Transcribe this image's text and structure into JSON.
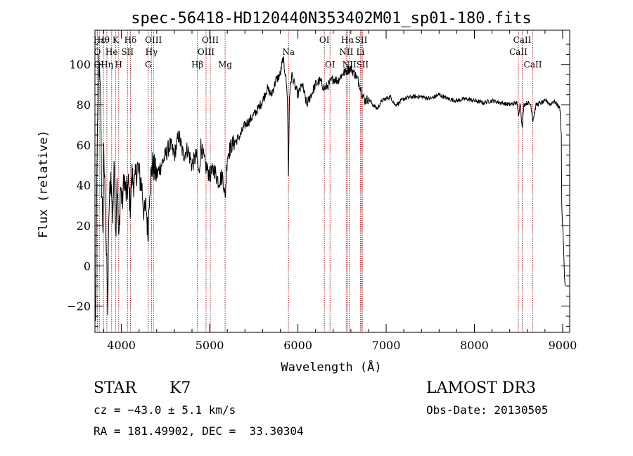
{
  "chart_data": {
    "type": "line",
    "title": "spec-56418-HD120440N353402M01_sp01-180.fits",
    "xlabel": "Wavelength (Å)",
    "ylabel": "Flux (relative)",
    "xlim": [
      3700,
      9080
    ],
    "ylim": [
      -33,
      117
    ],
    "xticks": [
      4000,
      5000,
      6000,
      7000,
      8000,
      9000
    ],
    "xtick_labels": [
      "4000",
      "5000",
      "6000",
      "7000",
      "8000",
      "9000"
    ],
    "yticks": [
      -20,
      0,
      20,
      40,
      60,
      80,
      100
    ],
    "ytick_labels": [
      "−20",
      "0",
      "20",
      "40",
      "60",
      "80",
      "100"
    ],
    "grid": false,
    "line_color": "#000000",
    "marker_color": "#b22222",
    "lines": [
      {
        "label": "Hε",
        "x": 3750,
        "row": 0
      },
      {
        "label": "O",
        "x": 3727,
        "row": 1
      },
      {
        "label": "O",
        "x": 3727,
        "row": 2
      },
      {
        "label": "Hη",
        "x": 3835,
        "row": 2
      },
      {
        "label": "Hθ",
        "x": 3797,
        "row": 0
      },
      {
        "label": "He",
        "x": 3889,
        "row": 1
      },
      {
        "label": "K",
        "x": 3934,
        "row": 0
      },
      {
        "label": "H",
        "x": 3969,
        "row": 2
      },
      {
        "label": "SII",
        "x": 4069,
        "row": 1
      },
      {
        "label": "Hδ",
        "x": 4102,
        "row": 0
      },
      {
        "label": "OIII",
        "x": 4363,
        "row": 0
      },
      {
        "label": "Hγ",
        "x": 4341,
        "row": 1
      },
      {
        "label": "G",
        "x": 4304,
        "row": 2
      },
      {
        "label": "Hβ",
        "x": 4861,
        "row": 2
      },
      {
        "label": "OIII",
        "x": 5007,
        "row": 0
      },
      {
        "label": "OIII",
        "x": 4959,
        "row": 1
      },
      {
        "label": "Mg",
        "x": 5175,
        "row": 2
      },
      {
        "label": "Na",
        "x": 5893,
        "row": 1
      },
      {
        "label": "OI",
        "x": 6300,
        "row": 0
      },
      {
        "label": "OI",
        "x": 6364,
        "row": 2
      },
      {
        "label": "Hα",
        "x": 6563,
        "row": 0
      },
      {
        "label": "NII",
        "x": 6548,
        "row": 1
      },
      {
        "label": "NII",
        "x": 6583,
        "row": 2
      },
      {
        "label": "SII",
        "x": 6717,
        "row": 0
      },
      {
        "label": "Li",
        "x": 6708,
        "row": 1
      },
      {
        "label": "SII",
        "x": 6731,
        "row": 2
      },
      {
        "label": "CaII",
        "x": 8542,
        "row": 0
      },
      {
        "label": "CaII",
        "x": 8498,
        "row": 1
      },
      {
        "label": "CaII",
        "x": 8662,
        "row": 2
      }
    ],
    "spectrum_anchors": [
      [
        3705,
        -30
      ],
      [
        3715,
        10
      ],
      [
        3725,
        60
      ],
      [
        3735,
        75
      ],
      [
        3745,
        100
      ],
      [
        3760,
        95
      ],
      [
        3775,
        40
      ],
      [
        3790,
        20
      ],
      [
        3800,
        55
      ],
      [
        3815,
        35
      ],
      [
        3830,
        5
      ],
      [
        3845,
        -20
      ],
      [
        3860,
        30
      ],
      [
        3880,
        45
      ],
      [
        3900,
        25
      ],
      [
        3920,
        50
      ],
      [
        3935,
        15
      ],
      [
        3950,
        45
      ],
      [
        3970,
        10
      ],
      [
        3990,
        40
      ],
      [
        4010,
        30
      ],
      [
        4030,
        45
      ],
      [
        4050,
        35
      ],
      [
        4080,
        40
      ],
      [
        4100,
        30
      ],
      [
        4120,
        45
      ],
      [
        4150,
        40
      ],
      [
        4180,
        50
      ],
      [
        4200,
        45
      ],
      [
        4230,
        40
      ],
      [
        4260,
        25
      ],
      [
        4280,
        30
      ],
      [
        4300,
        15
      ],
      [
        4320,
        40
      ],
      [
        4350,
        50
      ],
      [
        4400,
        45
      ],
      [
        4450,
        50
      ],
      [
        4500,
        55
      ],
      [
        4550,
        60
      ],
      [
        4600,
        55
      ],
      [
        4650,
        65
      ],
      [
        4700,
        55
      ],
      [
        4750,
        58
      ],
      [
        4800,
        50
      ],
      [
        4850,
        55
      ],
      [
        4880,
        45
      ],
      [
        4900,
        60
      ],
      [
        4950,
        50
      ],
      [
        5000,
        45
      ],
      [
        5050,
        48
      ],
      [
        5100,
        42
      ],
      [
        5150,
        45
      ],
      [
        5175,
        33
      ],
      [
        5200,
        55
      ],
      [
        5250,
        60
      ],
      [
        5300,
        62
      ],
      [
        5350,
        65
      ],
      [
        5400,
        70
      ],
      [
        5450,
        72
      ],
      [
        5500,
        75
      ],
      [
        5550,
        78
      ],
      [
        5600,
        82
      ],
      [
        5650,
        88
      ],
      [
        5700,
        85
      ],
      [
        5750,
        92
      ],
      [
        5800,
        95
      ],
      [
        5830,
        103
      ],
      [
        5860,
        95
      ],
      [
        5880,
        85
      ],
      [
        5893,
        45
      ],
      [
        5905,
        85
      ],
      [
        5930,
        95
      ],
      [
        5960,
        90
      ],
      [
        6000,
        85
      ],
      [
        6050,
        90
      ],
      [
        6100,
        80
      ],
      [
        6150,
        85
      ],
      [
        6200,
        90
      ],
      [
        6250,
        92
      ],
      [
        6300,
        88
      ],
      [
        6350,
        90
      ],
      [
        6400,
        93
      ],
      [
        6450,
        92
      ],
      [
        6500,
        95
      ],
      [
        6550,
        97
      ],
      [
        6600,
        98
      ],
      [
        6650,
        95
      ],
      [
        6700,
        90
      ],
      [
        6730,
        85
      ],
      [
        6760,
        82
      ],
      [
        6800,
        83
      ],
      [
        6850,
        80
      ],
      [
        6900,
        78
      ],
      [
        6950,
        82
      ],
      [
        7000,
        83
      ],
      [
        7050,
        84
      ],
      [
        7100,
        80
      ],
      [
        7150,
        81
      ],
      [
        7200,
        83
      ],
      [
        7300,
        84
      ],
      [
        7400,
        84
      ],
      [
        7500,
        83
      ],
      [
        7600,
        85
      ],
      [
        7700,
        83
      ],
      [
        7800,
        82
      ],
      [
        7900,
        83
      ],
      [
        8000,
        82
      ],
      [
        8100,
        81
      ],
      [
        8200,
        82
      ],
      [
        8300,
        81
      ],
      [
        8400,
        80
      ],
      [
        8480,
        81
      ],
      [
        8500,
        75
      ],
      [
        8520,
        81
      ],
      [
        8542,
        68
      ],
      [
        8560,
        80
      ],
      [
        8600,
        81
      ],
      [
        8640,
        80
      ],
      [
        8662,
        72
      ],
      [
        8700,
        80
      ],
      [
        8760,
        81
      ],
      [
        8820,
        82
      ],
      [
        8860,
        80
      ],
      [
        8900,
        82
      ],
      [
        8940,
        80
      ],
      [
        8970,
        78
      ],
      [
        8985,
        65
      ],
      [
        8990,
        30
      ],
      [
        9000,
        20
      ],
      [
        9010,
        10
      ],
      [
        9020,
        -5
      ],
      [
        9030,
        -10
      ]
    ]
  },
  "info": {
    "object_class": "STAR",
    "subclass": "K7",
    "survey": "LAMOST DR3",
    "cz": "cz = −43.0 ± 5.1 km/s",
    "obs_date": "Obs-Date: 20130505",
    "coords": "RA = 181.49902, DEC =  33.30304"
  }
}
